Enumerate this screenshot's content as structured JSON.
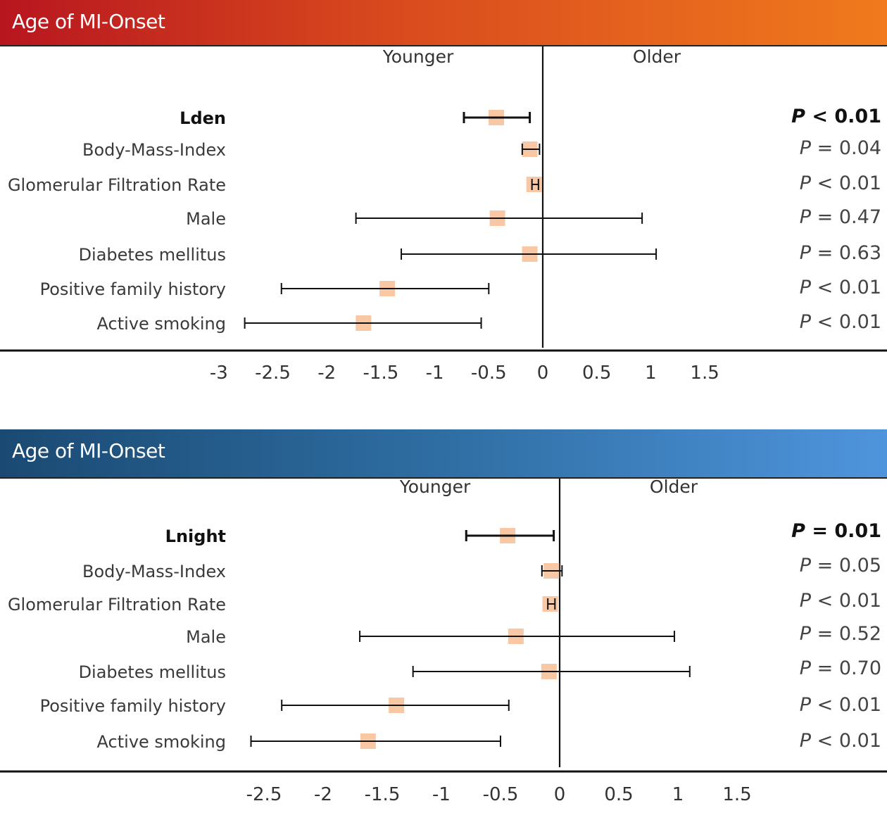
{
  "chart_data": [
    {
      "type": "forest",
      "title": "Age of MI-Onset",
      "direction_labels": {
        "left": "Younger",
        "right": "Older"
      },
      "xlim": [
        -3,
        1.5
      ],
      "x_ticks": [
        -3,
        -2.5,
        -2,
        -1.5,
        -1,
        -0.5,
        0,
        0.5,
        1,
        1.5
      ],
      "x_tick_labels": [
        "-3",
        "-2.5",
        "-2",
        "-1.5",
        "-1",
        "-0.5",
        "0",
        "0.5",
        "1",
        "1.5"
      ],
      "colors": {
        "banner_start": "#b8161f",
        "banner_end": "#f07a1d",
        "marker": "#f8c8a4",
        "line": "#111111"
      },
      "rows": [
        {
          "label": "Lden",
          "estimate": -0.43,
          "ci_low": -0.73,
          "ci_high": -0.12,
          "p_prefix": "P",
          "p_text": " < 0.01",
          "highlight": true
        },
        {
          "label": "Body-Mass-Index",
          "estimate": -0.12,
          "ci_low": -0.19,
          "ci_high": -0.03,
          "p_prefix": "P",
          "p_text": " = 0.04",
          "highlight": false
        },
        {
          "label": "Glomerular Filtration Rate",
          "estimate": -0.08,
          "ci_low": -0.1,
          "ci_high": -0.04,
          "p_prefix": "P",
          "p_text": " < 0.01",
          "highlight": false
        },
        {
          "label": "Male",
          "estimate": -0.42,
          "ci_low": -1.73,
          "ci_high": 0.92,
          "p_prefix": "P",
          "p_text": " = 0.47",
          "highlight": false
        },
        {
          "label": "Diabetes mellitus",
          "estimate": -0.12,
          "ci_low": -1.31,
          "ci_high": 1.05,
          "p_prefix": "P",
          "p_text": " = 0.63",
          "highlight": false
        },
        {
          "label": "Positive family history",
          "estimate": -1.44,
          "ci_low": -2.42,
          "ci_high": -0.5,
          "p_prefix": "P",
          "p_text": " < 0.01",
          "highlight": false
        },
        {
          "label": "Active smoking",
          "estimate": -1.66,
          "ci_low": -2.76,
          "ci_high": -0.57,
          "p_prefix": "P",
          "p_text": " < 0.01",
          "highlight": false
        }
      ]
    },
    {
      "type": "forest",
      "title": "Age of MI-Onset",
      "direction_labels": {
        "left": "Younger",
        "right": "Older"
      },
      "xlim": [
        -2.5,
        1.5
      ],
      "x_ticks": [
        -2.5,
        -2,
        -1.5,
        -1,
        -0.5,
        0,
        0.5,
        1,
        1.5
      ],
      "x_tick_labels": [
        "-2.5",
        "-2",
        "-1.5",
        "-1",
        "-0.5",
        "0",
        "0.5",
        "1",
        "1.5"
      ],
      "colors": {
        "banner_start": "#1a4a73",
        "banner_end": "#4f95dd",
        "marker": "#f8c8a4",
        "line": "#111111"
      },
      "rows": [
        {
          "label": "Lnight",
          "estimate": -0.44,
          "ci_low": -0.79,
          "ci_high": -0.05,
          "p_prefix": "P",
          "p_text": " = 0.01",
          "highlight": true
        },
        {
          "label": "Body-Mass-Index",
          "estimate": -0.07,
          "ci_low": -0.15,
          "ci_high": 0.02,
          "p_prefix": "P",
          "p_text": " = 0.05",
          "highlight": false
        },
        {
          "label": "Glomerular Filtration Rate",
          "estimate": -0.08,
          "ci_low": -0.1,
          "ci_high": -0.04,
          "p_prefix": "P",
          "p_text": " < 0.01",
          "highlight": false
        },
        {
          "label": "Male",
          "estimate": -0.37,
          "ci_low": -1.69,
          "ci_high": 0.97,
          "p_prefix": "P",
          "p_text": " = 0.52",
          "highlight": false
        },
        {
          "label": "Diabetes mellitus",
          "estimate": -0.09,
          "ci_low": -1.24,
          "ci_high": 1.1,
          "p_prefix": "P",
          "p_text": " = 0.70",
          "highlight": false
        },
        {
          "label": "Positive family history",
          "estimate": -1.38,
          "ci_low": -2.35,
          "ci_high": -0.43,
          "p_prefix": "P",
          "p_text": " < 0.01",
          "highlight": false
        },
        {
          "label": "Active smoking",
          "estimate": -1.62,
          "ci_low": -2.61,
          "ci_high": -0.5,
          "p_prefix": "P",
          "p_text": " < 0.01",
          "highlight": false
        }
      ]
    }
  ]
}
